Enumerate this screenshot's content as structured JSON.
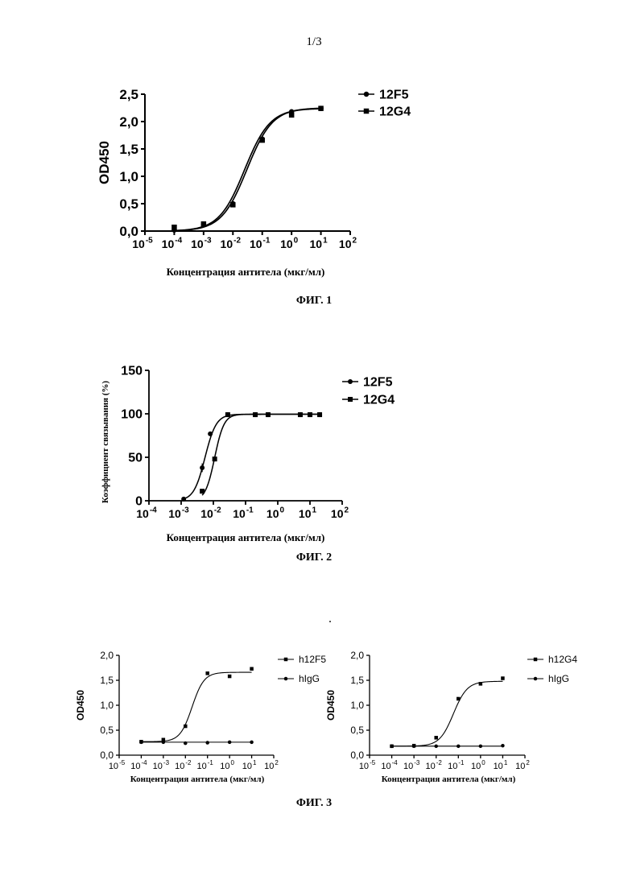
{
  "page_number": "1/3",
  "figures": {
    "fig1": {
      "caption": "ФИГ. 1"
    },
    "fig2": {
      "caption": "ФИГ. 2"
    },
    "fig3": {
      "caption": "ФИГ. 3"
    }
  },
  "chart_data": [
    {
      "id": "fig1",
      "type": "line",
      "title": "",
      "xlabel": "Концентрация антитела (мкг/мл)",
      "ylabel": "OD450",
      "x_scale": "log",
      "xlim": [
        1e-05,
        100
      ],
      "ylim": [
        0,
        2.5
      ],
      "x_ticks": [
        -5,
        -4,
        -3,
        -2,
        -1,
        0,
        1,
        2
      ],
      "y_ticks": [
        "0,0",
        "0,5",
        "1,0",
        "1,5",
        "2,0",
        "2,5"
      ],
      "legend_position": "top-right",
      "grid": false,
      "series": [
        {
          "name": "12F5",
          "marker": "circle",
          "x": [
            0.0001,
            0.001,
            0.01,
            0.1,
            1,
            10
          ],
          "y": [
            0.02,
            0.12,
            0.5,
            1.68,
            2.18,
            2.24
          ],
          "fit": {
            "bottom": 0.0,
            "top": 2.24,
            "ec50": 0.025,
            "hill": 1.0
          }
        },
        {
          "name": "12G4",
          "marker": "square",
          "x": [
            0.0001,
            0.001,
            0.01,
            0.1,
            1,
            10
          ],
          "y": [
            0.07,
            0.13,
            0.48,
            1.66,
            2.12,
            2.24
          ],
          "fit": {
            "bottom": 0.0,
            "top": 2.25,
            "ec50": 0.03,
            "hill": 1.0
          }
        }
      ]
    },
    {
      "id": "fig2",
      "type": "line",
      "title": "",
      "xlabel": "Концентрация антитела (мкг/мл)",
      "ylabel": "Коэффициент связывания (%)",
      "x_scale": "log",
      "xlim": [
        0.0001,
        100
      ],
      "ylim": [
        0,
        150
      ],
      "x_ticks": [
        -4,
        -3,
        -2,
        -1,
        0,
        1,
        2
      ],
      "y_ticks": [
        "0",
        "50",
        "100",
        "150"
      ],
      "legend_position": "top-right",
      "grid": false,
      "series": [
        {
          "name": "12F5",
          "marker": "circle",
          "x": [
            0.0012,
            0.0045,
            0.008,
            0.028,
            0.2,
            0.5,
            5,
            10,
            20
          ],
          "y": [
            2,
            38,
            77,
            99,
            99,
            99,
            99,
            99,
            99
          ],
          "error": [
            0,
            5,
            0,
            0,
            0,
            0,
            0,
            0,
            0
          ],
          "fit": {
            "bottom": 0,
            "top": 99.5,
            "ec50": 0.0055,
            "hill": 2.5
          }
        },
        {
          "name": "12G4",
          "marker": "square",
          "x": [
            0.0045,
            0.011,
            0.028,
            0.2,
            0.5,
            5,
            10,
            20
          ],
          "y": [
            11,
            48,
            99,
            99,
            99,
            99,
            99,
            99
          ],
          "fit": {
            "bottom": 0,
            "top": 99.5,
            "ec50": 0.011,
            "hill": 3.0
          }
        }
      ]
    },
    {
      "id": "fig3a",
      "type": "line",
      "title": "",
      "xlabel": "Концентрация антитела (мкг/мл)",
      "ylabel": "OD450",
      "x_scale": "log",
      "xlim": [
        1e-05,
        100
      ],
      "ylim": [
        0,
        2.0
      ],
      "x_ticks": [
        -5,
        -4,
        -3,
        -2,
        -1,
        0,
        1,
        2
      ],
      "y_ticks": [
        "0,0",
        "0,5",
        "1,0",
        "1,5",
        "2,0"
      ],
      "legend_position": "top-right",
      "grid": false,
      "series": [
        {
          "name": "h12F5",
          "marker": "square",
          "x": [
            0.0001,
            0.001,
            0.01,
            0.1,
            1,
            10
          ],
          "y": [
            0.27,
            0.31,
            0.58,
            1.64,
            1.58,
            1.73
          ],
          "fit": {
            "bottom": 0.27,
            "top": 1.66,
            "ec50": 0.02,
            "hill": 1.6
          }
        },
        {
          "name": "hIgG",
          "marker": "circle",
          "x": [
            0.0001,
            0.001,
            0.01,
            0.1,
            1,
            10
          ],
          "y": [
            0.26,
            0.26,
            0.24,
            0.25,
            0.26,
            0.26
          ],
          "fit": {
            "flat": 0.26
          }
        }
      ]
    },
    {
      "id": "fig3b",
      "type": "line",
      "title": "",
      "xlabel": "Концентрация антитела (мкг/мл)",
      "ylabel": "OD450",
      "x_scale": "log",
      "xlim": [
        1e-05,
        100
      ],
      "ylim": [
        0,
        2.0
      ],
      "x_ticks": [
        -5,
        -4,
        -3,
        -2,
        -1,
        0,
        1,
        2
      ],
      "y_ticks": [
        "0,0",
        "0,5",
        "1,0",
        "1,5",
        "2,0"
      ],
      "legend_position": "top-right",
      "grid": false,
      "series": [
        {
          "name": "h12G4",
          "marker": "square",
          "x": [
            0.0001,
            0.001,
            0.01,
            0.1,
            1,
            10
          ],
          "y": [
            0.18,
            0.19,
            0.35,
            1.13,
            1.43,
            1.54
          ],
          "fit": {
            "bottom": 0.18,
            "top": 1.48,
            "ec50": 0.06,
            "hill": 1.4
          }
        },
        {
          "name": "hIgG",
          "marker": "circle",
          "x": [
            0.0001,
            0.001,
            0.01,
            0.1,
            1,
            10
          ],
          "y": [
            0.18,
            0.18,
            0.18,
            0.18,
            0.18,
            0.19
          ],
          "fit": {
            "flat": 0.18
          }
        }
      ]
    }
  ]
}
